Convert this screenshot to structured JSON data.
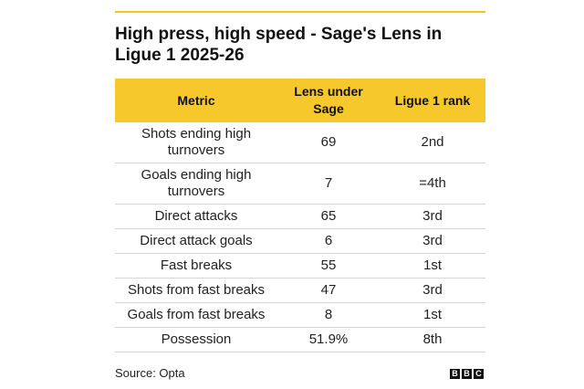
{
  "title": "High press, high speed - Sage's Lens in Ligue 1 2025-26",
  "chart_data": {
    "type": "table",
    "columns": [
      "Metric",
      "Lens under Sage",
      "Ligue 1 rank"
    ],
    "rows": [
      {
        "metric": "Shots ending high turnovers",
        "value": "69",
        "rank": "2nd"
      },
      {
        "metric": "Goals ending high turnovers",
        "value": "7",
        "rank": "=4th"
      },
      {
        "metric": "Direct attacks",
        "value": "65",
        "rank": "3rd"
      },
      {
        "metric": "Direct attack goals",
        "value": "6",
        "rank": "3rd"
      },
      {
        "metric": "Fast breaks",
        "value": "55",
        "rank": "1st"
      },
      {
        "metric": "Shots from fast breaks",
        "value": "47",
        "rank": "3rd"
      },
      {
        "metric": "Goals from fast breaks",
        "value": "8",
        "rank": "1st"
      },
      {
        "metric": "Possession",
        "value": "51.9%",
        "rank": "8th"
      }
    ]
  },
  "source": "Source: Opta",
  "logo": {
    "letters": [
      "B",
      "B",
      "C"
    ]
  },
  "colors": {
    "header_background": "#f7c82c",
    "top_rule": "#f5c518"
  }
}
